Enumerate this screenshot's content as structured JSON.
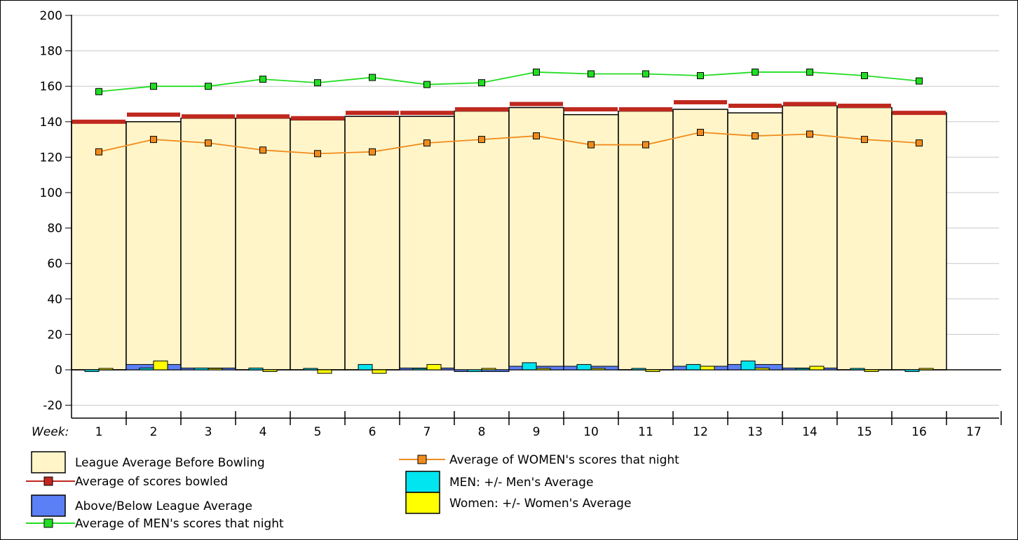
{
  "chart_data": {
    "type": "bar",
    "xlabel": "Week:",
    "categories": [
      "1",
      "2",
      "3",
      "4",
      "5",
      "6",
      "7",
      "8",
      "9",
      "10",
      "11",
      "12",
      "13",
      "14",
      "15",
      "16",
      "17"
    ],
    "ylim": [
      -25,
      200
    ],
    "yticks": [
      -20,
      0,
      20,
      40,
      60,
      80,
      100,
      120,
      140,
      160,
      180,
      200
    ],
    "grid": true,
    "legend_position": "bottom",
    "series": [
      {
        "name": "League Average Before Bowling",
        "kind": "bar",
        "color": "#fff5c8",
        "values": [
          140,
          140,
          142,
          142,
          141,
          143,
          143,
          146,
          148,
          144,
          146,
          147,
          145,
          149,
          148,
          145,
          null
        ]
      },
      {
        "name": "Average of scores bowled",
        "kind": "level",
        "color": "#c0281e",
        "values": [
          140,
          144,
          143,
          143,
          142,
          145,
          145,
          147,
          150,
          147,
          147,
          151,
          149,
          150,
          149,
          145,
          null
        ]
      },
      {
        "name": "Above/Below League Average",
        "kind": "diff",
        "color": "#5b7ff5",
        "values": [
          0,
          3,
          1,
          0,
          0,
          0,
          1,
          -1,
          2,
          2,
          0,
          2,
          3,
          1,
          0,
          0,
          null
        ]
      },
      {
        "name": "MEN: +/- Men's Average",
        "kind": "diff",
        "color": "#00e5f0",
        "values": [
          -1,
          1,
          1,
          1,
          0,
          3,
          0,
          -1,
          4,
          3,
          0,
          3,
          5,
          0,
          0,
          -1,
          null
        ]
      },
      {
        "name": "Women: +/- Women's Average",
        "kind": "diff",
        "color": "#ffff00",
        "values": [
          0,
          5,
          0,
          -1,
          -2,
          -2,
          3,
          0,
          0,
          0,
          -1,
          2,
          1,
          2,
          -1,
          0,
          null
        ]
      },
      {
        "name": "Average of WOMEN's scores that night",
        "kind": "line",
        "color": "#f08c1e",
        "marker_color": "#f08c1e",
        "values": [
          123,
          130,
          128,
          124,
          122,
          123,
          128,
          130,
          132,
          127,
          127,
          134,
          132,
          133,
          130,
          128,
          null
        ]
      },
      {
        "name": "Average of MEN's scores that night",
        "kind": "line",
        "color": "#22dd22",
        "marker_color": "#22dd22",
        "values": [
          157,
          160,
          160,
          164,
          162,
          165,
          161,
          162,
          168,
          167,
          167,
          166,
          168,
          168,
          166,
          163,
          null
        ]
      }
    ]
  }
}
